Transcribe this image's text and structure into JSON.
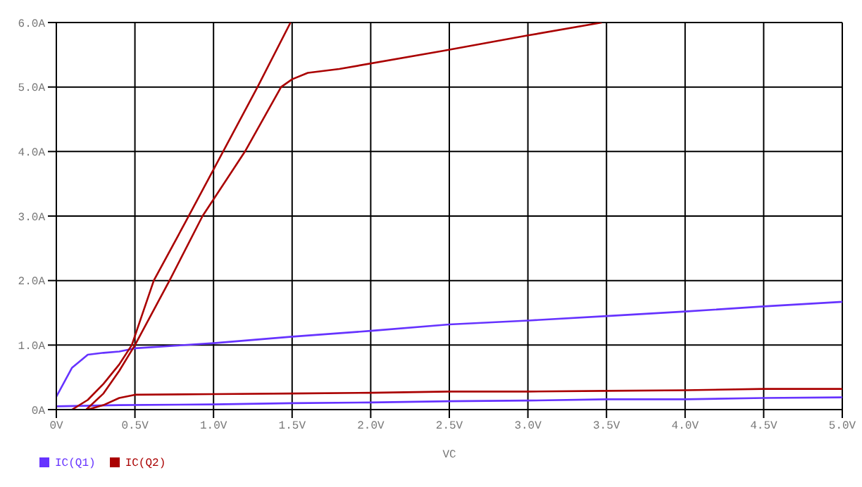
{
  "chart_data": {
    "type": "line",
    "xlabel": "VC",
    "xlim": [
      0,
      5
    ],
    "ylim": [
      0,
      6
    ],
    "xticks": [
      {
        "value": 0,
        "label": "0V"
      },
      {
        "value": 0.5,
        "label": "0.5V"
      },
      {
        "value": 1,
        "label": "1.0V"
      },
      {
        "value": 1.5,
        "label": "1.5V"
      },
      {
        "value": 2,
        "label": "2.0V"
      },
      {
        "value": 2.5,
        "label": "2.5V"
      },
      {
        "value": 3,
        "label": "3.0V"
      },
      {
        "value": 3.5,
        "label": "3.5V"
      },
      {
        "value": 4,
        "label": "4.0V"
      },
      {
        "value": 4.5,
        "label": "4.5V"
      },
      {
        "value": 5,
        "label": "5.0V"
      }
    ],
    "yticks": [
      {
        "value": 0,
        "label": "0A"
      },
      {
        "value": 1,
        "label": "1.0A"
      },
      {
        "value": 2,
        "label": "2.0A"
      },
      {
        "value": 3,
        "label": "3.0A"
      },
      {
        "value": 4,
        "label": "4.0A"
      },
      {
        "value": 5,
        "label": "5.0A"
      },
      {
        "value": 6,
        "label": "6.0A"
      }
    ],
    "grid": true,
    "legend": "bottom left",
    "line_style": "solid",
    "series": [
      {
        "name": "IC(Q1)",
        "color": "#6633ff",
        "x": [
          0,
          0.1,
          0.2,
          0.3,
          0.4,
          0.5,
          1.0,
          1.5,
          2.0,
          2.5,
          3.0,
          3.5,
          4.0,
          4.5,
          5.0
        ],
        "values": [
          0.2,
          0.65,
          0.85,
          0.88,
          0.9,
          0.95,
          1.03,
          1.13,
          1.22,
          1.32,
          1.38,
          1.45,
          1.52,
          1.6,
          1.67
        ]
      },
      {
        "color": "#6633ff",
        "x": [
          0,
          0.4,
          1.0,
          1.5,
          2.0,
          2.5,
          3.0,
          3.5,
          4.0,
          4.5,
          5.0
        ],
        "values": [
          0.05,
          0.07,
          0.08,
          0.1,
          0.11,
          0.13,
          0.14,
          0.16,
          0.16,
          0.18,
          0.19
        ]
      },
      {
        "name": "IC(Q2)",
        "color": "#aa0000",
        "x": [
          0.1,
          0.2,
          0.3,
          0.4,
          0.48,
          0.62,
          0.82,
          1.28,
          1.49
        ],
        "values": [
          0,
          0.15,
          0.4,
          0.7,
          1.0,
          2.0,
          2.9,
          5.0,
          6.0
        ]
      },
      {
        "color": "#aa0000",
        "x": [
          0.19,
          0.3,
          0.4,
          0.5,
          0.72,
          0.93,
          1.2,
          1.43,
          1.5,
          1.6,
          1.8,
          2.46,
          3.0,
          3.47
        ],
        "values": [
          0,
          0.25,
          0.6,
          1.0,
          2.0,
          3.0,
          4.0,
          5.0,
          5.12,
          5.22,
          5.28,
          5.56,
          5.8,
          6.0
        ]
      },
      {
        "color": "#aa0000",
        "x": [
          0.2,
          0.3,
          0.4,
          0.5,
          1.0,
          1.5,
          2.0,
          2.5,
          3.0,
          3.5,
          4.0,
          4.5,
          5.0
        ],
        "values": [
          0,
          0.07,
          0.18,
          0.23,
          0.24,
          0.25,
          0.26,
          0.28,
          0.28,
          0.29,
          0.3,
          0.32,
          0.32
        ]
      }
    ]
  }
}
